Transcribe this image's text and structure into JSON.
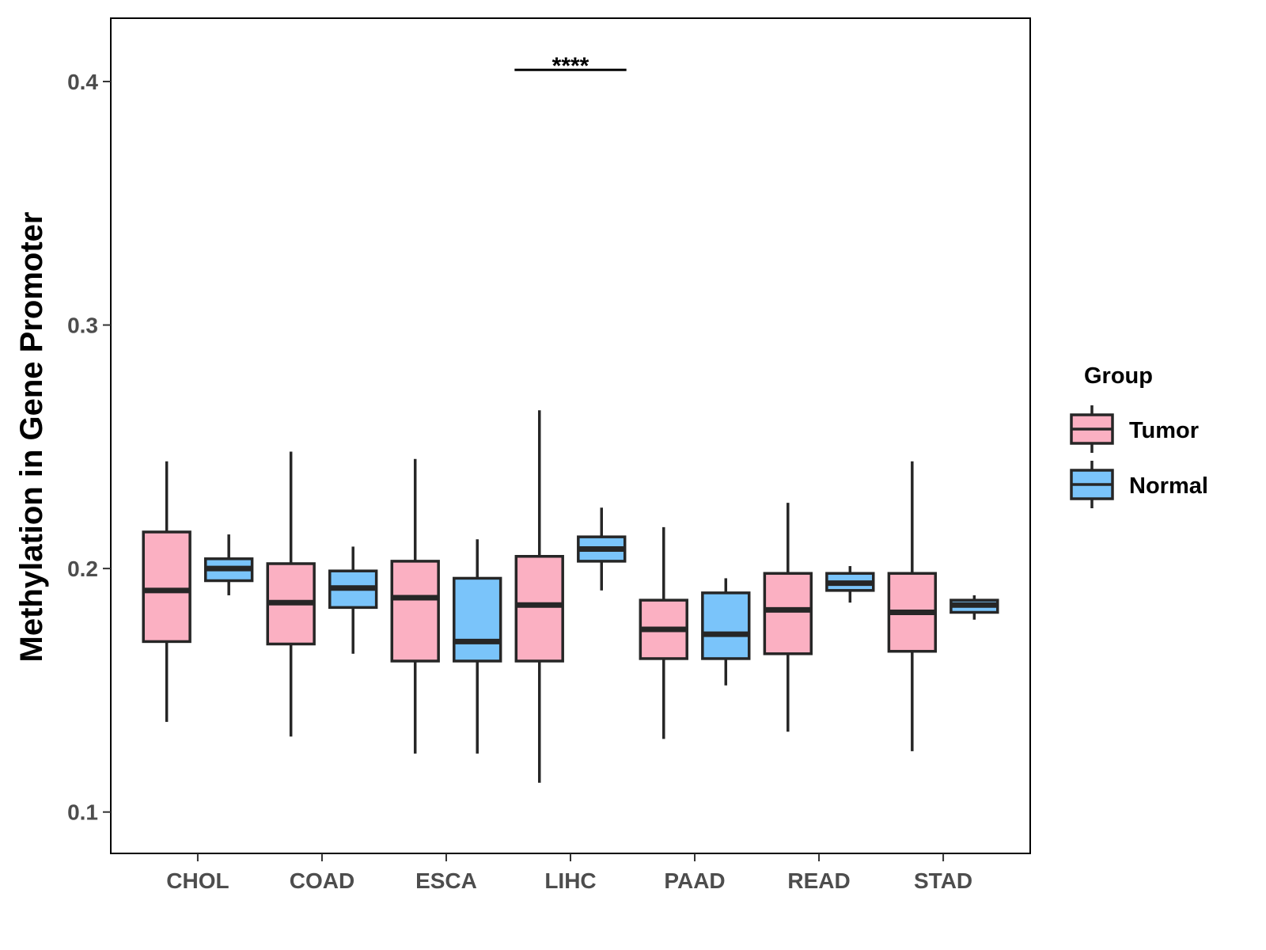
{
  "chart_data": {
    "type": "boxplot",
    "title": "",
    "xlabel": "",
    "ylabel": "Methylation in Gene Promoter",
    "ylim": [
      0.083,
      0.426
    ],
    "yticks": [
      0.1,
      0.2,
      0.3,
      0.4
    ],
    "ytick_labels": [
      "0.1",
      "0.2",
      "0.3",
      "0.4"
    ],
    "categories": [
      "CHOL",
      "COAD",
      "ESCA",
      "LIHC",
      "PAAD",
      "READ",
      "STAD"
    ],
    "legend": {
      "title": "Group",
      "position": "right",
      "entries": [
        {
          "name": "Tumor",
          "color": "#FBB0C2"
        },
        {
          "name": "Normal",
          "color": "#7AC4FA"
        }
      ]
    },
    "series": [
      {
        "name": "Tumor",
        "color": "#FBB0C2",
        "boxes": [
          {
            "category": "CHOL",
            "min": 0.137,
            "q1": 0.17,
            "median": 0.191,
            "q3": 0.215,
            "max": 0.244
          },
          {
            "category": "COAD",
            "min": 0.131,
            "q1": 0.169,
            "median": 0.186,
            "q3": 0.202,
            "max": 0.248
          },
          {
            "category": "ESCA",
            "min": 0.124,
            "q1": 0.162,
            "median": 0.188,
            "q3": 0.203,
            "max": 0.245
          },
          {
            "category": "LIHC",
            "min": 0.112,
            "q1": 0.162,
            "median": 0.185,
            "q3": 0.205,
            "max": 0.265
          },
          {
            "category": "PAAD",
            "min": 0.13,
            "q1": 0.163,
            "median": 0.175,
            "q3": 0.187,
            "max": 0.217
          },
          {
            "category": "READ",
            "min": 0.133,
            "q1": 0.165,
            "median": 0.183,
            "q3": 0.198,
            "max": 0.227
          },
          {
            "category": "STAD",
            "min": 0.125,
            "q1": 0.166,
            "median": 0.182,
            "q3": 0.198,
            "max": 0.244
          }
        ]
      },
      {
        "name": "Normal",
        "color": "#7AC4FA",
        "boxes": [
          {
            "category": "CHOL",
            "min": 0.189,
            "q1": 0.195,
            "median": 0.2,
            "q3": 0.204,
            "max": 0.214
          },
          {
            "category": "COAD",
            "min": 0.165,
            "q1": 0.184,
            "median": 0.192,
            "q3": 0.199,
            "max": 0.209
          },
          {
            "category": "ESCA",
            "min": 0.124,
            "q1": 0.162,
            "median": 0.17,
            "q3": 0.196,
            "max": 0.212
          },
          {
            "category": "LIHC",
            "min": 0.191,
            "q1": 0.203,
            "median": 0.208,
            "q3": 0.213,
            "max": 0.225
          },
          {
            "category": "PAAD",
            "min": 0.152,
            "q1": 0.163,
            "median": 0.173,
            "q3": 0.19,
            "max": 0.196
          },
          {
            "category": "READ",
            "min": 0.186,
            "q1": 0.191,
            "median": 0.194,
            "q3": 0.198,
            "max": 0.201
          },
          {
            "category": "STAD",
            "min": 0.179,
            "q1": 0.182,
            "median": 0.185,
            "q3": 0.187,
            "max": 0.189
          }
        ]
      }
    ],
    "annotations": [
      {
        "category": "LIHC",
        "text": "****",
        "y": 0.41
      }
    ]
  }
}
